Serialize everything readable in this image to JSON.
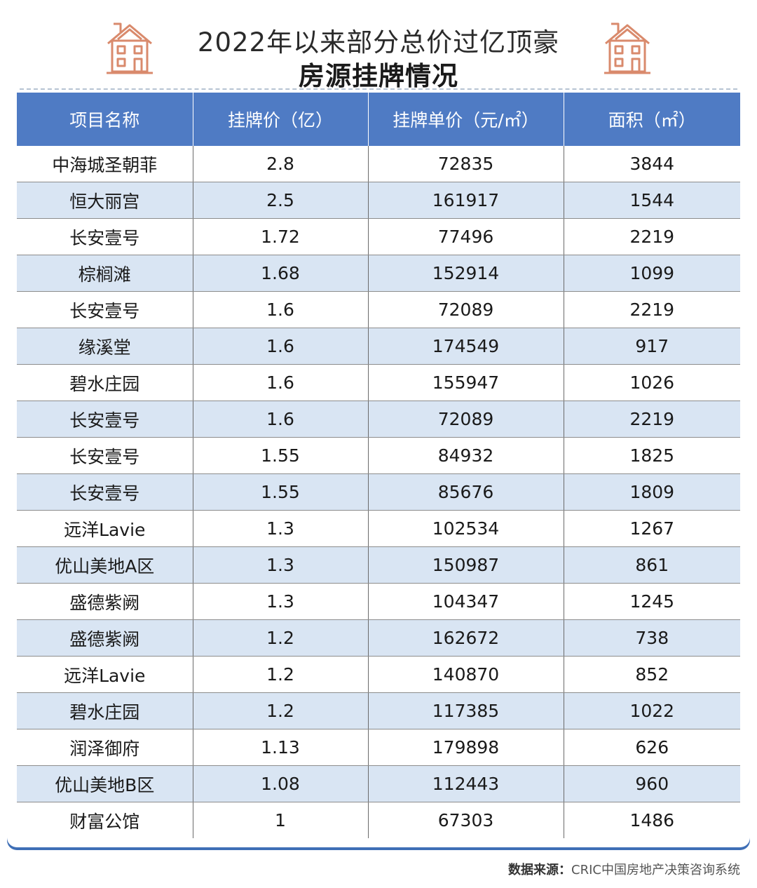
{
  "title": {
    "line1": "2022年以来部分总价过亿顶豪",
    "line2": "房源挂牌情况"
  },
  "colors": {
    "header_bg": "#4f7bc4",
    "alt_row": "#d9e5f3",
    "icon": "#d98a6c"
  },
  "icons": {
    "left": "house-icon",
    "right": "house-icon"
  },
  "chart_data": {
    "type": "table",
    "columns": [
      "项目名称",
      "挂牌价（亿）",
      "挂牌单价（元/㎡）",
      "面积（㎡）"
    ],
    "rows": [
      [
        "中海城圣朝菲",
        "2.8",
        "72835",
        "3844"
      ],
      [
        "恒大丽宫",
        "2.5",
        "161917",
        "1544"
      ],
      [
        "长安壹号",
        "1.72",
        "77496",
        "2219"
      ],
      [
        "棕榈滩",
        "1.68",
        "152914",
        "1099"
      ],
      [
        "长安壹号",
        "1.6",
        "72089",
        "2219"
      ],
      [
        "缘溪堂",
        "1.6",
        "174549",
        "917"
      ],
      [
        "碧水庄园",
        "1.6",
        "155947",
        "1026"
      ],
      [
        "长安壹号",
        "1.6",
        "72089",
        "2219"
      ],
      [
        "长安壹号",
        "1.55",
        "84932",
        "1825"
      ],
      [
        "长安壹号",
        "1.55",
        "85676",
        "1809"
      ],
      [
        "远洋Lavie",
        "1.3",
        "102534",
        "1267"
      ],
      [
        "优山美地A区",
        "1.3",
        "150987",
        "861"
      ],
      [
        "盛德紫阙",
        "1.3",
        "104347",
        "1245"
      ],
      [
        "盛德紫阙",
        "1.2",
        "162672",
        "738"
      ],
      [
        "远洋Lavie",
        "1.2",
        "140870",
        "852"
      ],
      [
        "碧水庄园",
        "1.2",
        "117385",
        "1022"
      ],
      [
        "润泽御府",
        "1.13",
        "179898",
        "626"
      ],
      [
        "优山美地B区",
        "1.08",
        "112443",
        "960"
      ],
      [
        "财富公馆",
        "1",
        "67303",
        "1486"
      ]
    ]
  },
  "source": {
    "label": "数据来源：",
    "text": "CRIC中国房地产决策咨询系统"
  }
}
